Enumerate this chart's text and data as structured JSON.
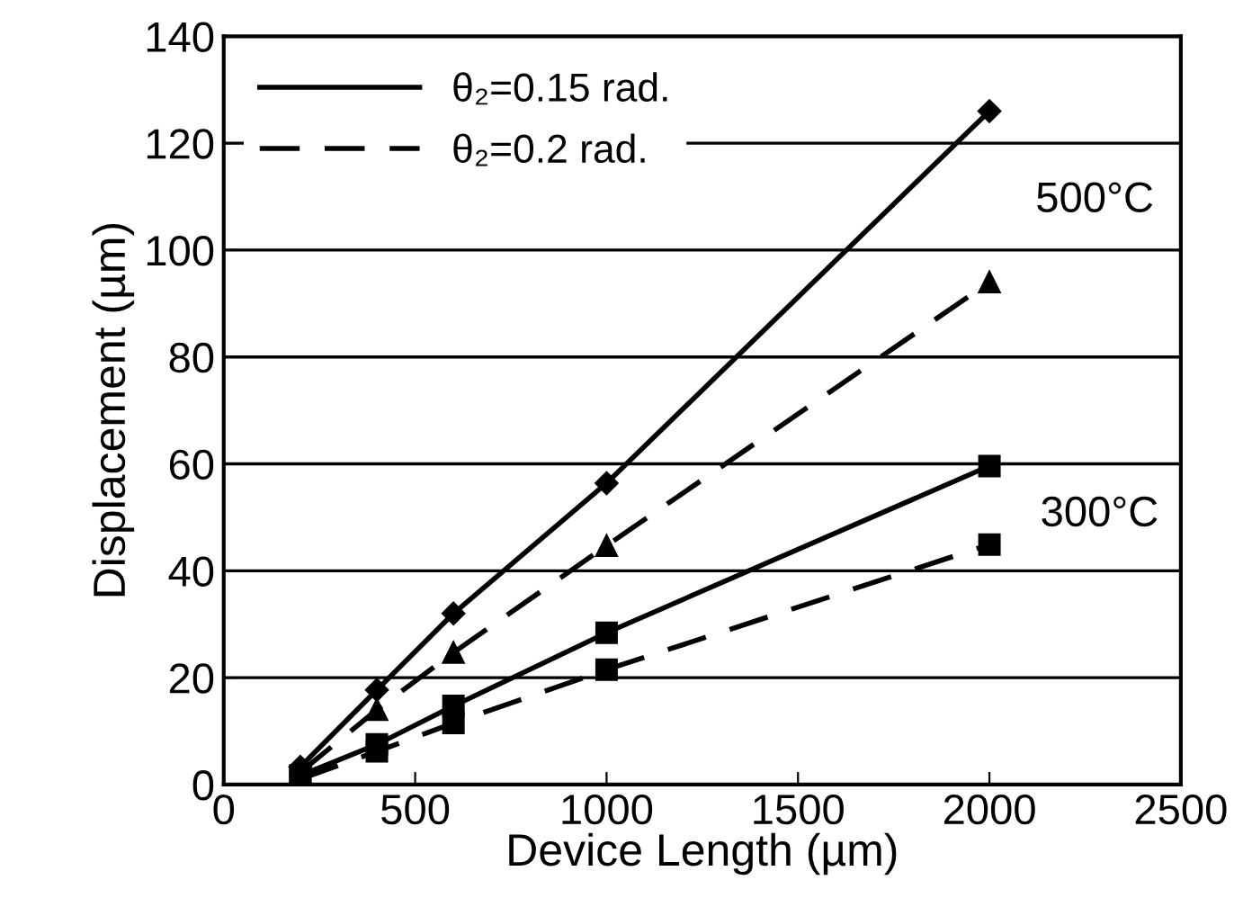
{
  "chart_data": {
    "type": "line",
    "xlabel": "Device Length (µm)",
    "ylabel": "Displacement (µm)",
    "xlim": [
      0,
      2500
    ],
    "xticks": [
      0,
      500,
      1000,
      1500,
      2000,
      2500
    ],
    "ylim": [
      0,
      140
    ],
    "yticks": [
      0,
      20,
      40,
      60,
      80,
      100,
      120,
      140
    ],
    "grid": "y",
    "legend": "top left",
    "series": [
      {
        "name": "θ₂=0.15 rad.",
        "color": "#000000",
        "marker": "diamond",
        "line_style": "solid",
        "x": [
          200,
          400,
          600,
          1000,
          2000
        ],
        "values": [
          3.3,
          17.7,
          32,
          56.4,
          126
        ]
      },
      {
        "name": "θ₂=0.2 rad.",
        "color": "#000000",
        "marker": "triangle",
        "line_style": "dashed",
        "x": [
          200,
          400,
          600,
          1000,
          2000
        ],
        "values": [
          2.3,
          14,
          24.7,
          44.7,
          94
        ]
      },
      {
        "color": "#000000",
        "marker": "square",
        "line_style": "solid",
        "x": [
          200,
          400,
          600,
          1000,
          2000
        ],
        "values": [
          1.7,
          7.5,
          14.7,
          28.4,
          59.6
        ]
      },
      {
        "color": "#000000",
        "marker": "square",
        "line_style": "dashed",
        "x": [
          200,
          400,
          600,
          1000,
          2000
        ],
        "values": [
          1,
          6.2,
          11.5,
          21.5,
          44.9
        ]
      }
    ],
    "annotations": [
      "500°C",
      "300°C"
    ]
  }
}
